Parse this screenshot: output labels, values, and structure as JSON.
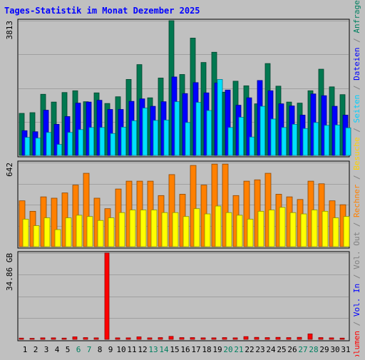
{
  "chart_data": {
    "type": "bar",
    "title": "Tages-Statistik im Monat Dezember 2025",
    "categories": [
      "1",
      "2",
      "3",
      "4",
      "5",
      "6",
      "7",
      "8",
      "9",
      "10",
      "11",
      "12",
      "13",
      "14",
      "15",
      "16",
      "17",
      "18",
      "19",
      "20",
      "21",
      "22",
      "23",
      "24",
      "25",
      "26",
      "27",
      "28",
      "29",
      "30",
      "31"
    ],
    "weekend_days": [
      "6",
      "7",
      "13",
      "14",
      "20",
      "21",
      "27",
      "28"
    ],
    "panels": [
      {
        "id": "top",
        "max_label": "3813",
        "ymax": 3813,
        "series": [
          {
            "name": "Anfragen",
            "color": "#007850",
            "values": [
              1190,
              1210,
              1730,
              1510,
              1780,
              1830,
              1520,
              1770,
              1470,
              1660,
              2150,
              2570,
              1630,
              2190,
              3813,
              2290,
              3320,
              2630,
              2920,
              1790,
              2100,
              1970,
              1460,
              2600,
              1960,
              1510,
              1480,
              1830,
              2440,
              1940,
              1720
            ]
          },
          {
            "name": "Dateien",
            "color": "#0000ff",
            "values": [
              700,
              670,
              1280,
              880,
              1100,
              1480,
              1510,
              1560,
              1300,
              1300,
              1530,
              1600,
              1390,
              1520,
              2220,
              1750,
              2060,
              1770,
              2050,
              1850,
              1420,
              1630,
              2120,
              1830,
              1460,
              1400,
              1140,
              1740,
              1690,
              1390,
              1140
            ]
          },
          {
            "name": "Seiten",
            "color": "#00e0ff",
            "values": [
              510,
              490,
              650,
              310,
              650,
              730,
              790,
              790,
              620,
              800,
              980,
              1340,
              990,
              1000,
              1520,
              930,
              1500,
              1270,
              2150,
              790,
              1080,
              520,
              1390,
              1030,
              790,
              880,
              760,
              930,
              850,
              860,
              780
            ]
          }
        ]
      },
      {
        "id": "middle",
        "max_label": "642",
        "ymax": 642,
        "series": [
          {
            "name": "Besuche",
            "color": "#ff8000",
            "values": [
              350,
              270,
              380,
              370,
              410,
              470,
              560,
              370,
              290,
              440,
              500,
              500,
              500,
              390,
              550,
              400,
              620,
              470,
              630,
              630,
              390,
              500,
              510,
              560,
              400,
              380,
              360,
              500,
              480,
              350,
              320
            ]
          },
          {
            "name": "Rechner",
            "color": "#ffff00",
            "values": [
              210,
              160,
              220,
              130,
              220,
              240,
              230,
              200,
              220,
              260,
              280,
              280,
              280,
              260,
              260,
              230,
              290,
              250,
              310,
              260,
              240,
              210,
              270,
              280,
              300,
              260,
              250,
              280,
              270,
              220,
              230
            ]
          }
        ]
      },
      {
        "id": "bottom",
        "max_label": "34.86 GB",
        "ymax": 34.86,
        "series": [
          {
            "name": "Volumen",
            "color": "#ff0000",
            "values": [
              0.5,
              0.4,
              0.6,
              0.6,
              0.5,
              1.0,
              0.7,
              0.6,
              34.86,
              0.6,
              0.6,
              1.0,
              0.6,
              0.7,
              1.2,
              0.7,
              0.7,
              0.6,
              0.6,
              0.7,
              0.6,
              1.1,
              0.8,
              0.7,
              0.8,
              0.7,
              0.8,
              2.2,
              0.7,
              0.6,
              0.5
            ]
          }
        ]
      }
    ],
    "right_legend": [
      {
        "text": "Volumen",
        "color": "#ff0000"
      },
      {
        "text": " / ",
        "color": "#808080"
      },
      {
        "text": "Vol. In",
        "color": "#0000ff"
      },
      {
        "text": " / ",
        "color": "#808080"
      },
      {
        "text": "Vol. Out",
        "color": "#808080"
      },
      {
        "text": " / ",
        "color": "#808080"
      },
      {
        "text": "Rechner",
        "color": "#ff8000"
      },
      {
        "text": " / ",
        "color": "#808080"
      },
      {
        "text": "Besuche",
        "color": "#ffd000"
      },
      {
        "text": " / ",
        "color": "#808080"
      },
      {
        "text": "Seiten",
        "color": "#00d0ff"
      },
      {
        "text": " / ",
        "color": "#808080"
      },
      {
        "text": "Dateien",
        "color": "#0000ff"
      },
      {
        "text": " / ",
        "color": "#808080"
      },
      {
        "text": "Anfragen",
        "color": "#008060"
      }
    ],
    "colors": {
      "background": "#c0c0c0",
      "title": "#0000ff",
      "weekday_label": "#000000",
      "weekend_label": "#008060",
      "gridline": "#808080"
    }
  }
}
